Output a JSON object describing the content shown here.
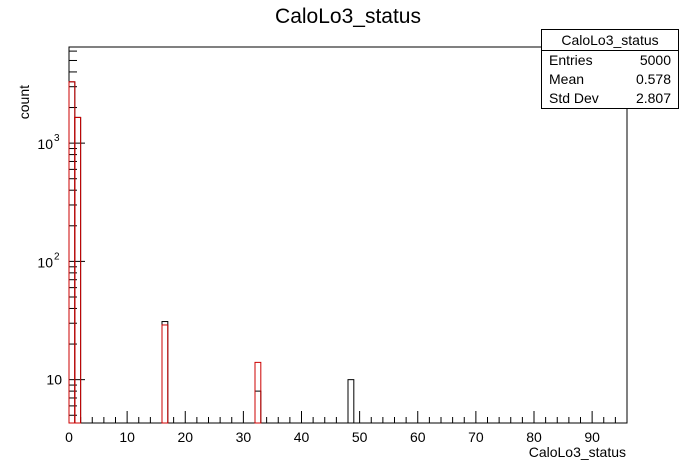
{
  "chart_data": {
    "type": "bar",
    "title": "CaloLo3_status",
    "xlabel": "CaloLo3_status",
    "ylabel": "count",
    "xlim": [
      0,
      96
    ],
    "ylim": [
      4.3,
      6500
    ],
    "yscale": "log",
    "x_major_ticks": [
      0,
      10,
      20,
      30,
      40,
      50,
      60,
      70,
      80,
      90
    ],
    "y_labeled_ticks": [
      {
        "value": 10,
        "label": "10"
      },
      {
        "value": 100,
        "label": "10",
        "exponent": "2"
      },
      {
        "value": 1000,
        "label": "10",
        "exponent": "3"
      }
    ],
    "bin_width": 1,
    "series": [
      {
        "color": "#000000",
        "bins": [
          {
            "x": 0,
            "value": 3300
          },
          {
            "x": 1,
            "value": 1650
          },
          {
            "x": 16,
            "value": 31
          },
          {
            "x": 32,
            "value": 8
          },
          {
            "x": 48,
            "value": 10
          }
        ]
      },
      {
        "color": "#cc0000",
        "bins": [
          {
            "x": 0,
            "value": 3300
          },
          {
            "x": 1,
            "value": 1650
          },
          {
            "x": 16,
            "value": 29
          },
          {
            "x": 32,
            "value": 14
          }
        ]
      }
    ],
    "stats": {
      "name": "CaloLo3_status",
      "rows": [
        {
          "label": "Entries",
          "value": "5000"
        },
        {
          "label": "Mean",
          "value": "0.578"
        },
        {
          "label": "Std Dev",
          "value": "2.807"
        }
      ]
    }
  }
}
